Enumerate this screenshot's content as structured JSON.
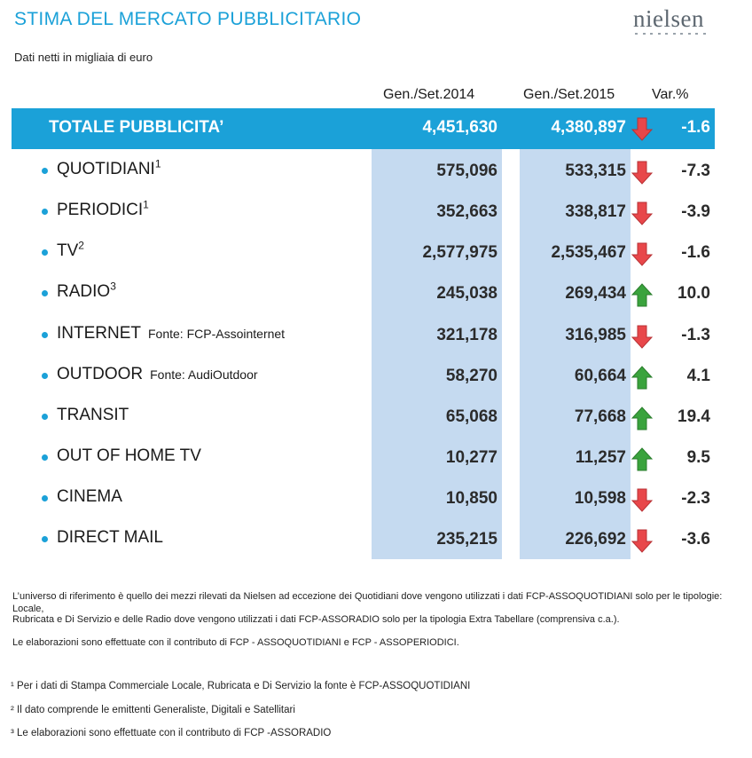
{
  "title": "STIMA DEL MERCATO PUBBLICITARIO",
  "subtitle": "Dati netti in migliaia di euro",
  "logo": "nielsen",
  "headers": {
    "col1": "Gen./Set.2014",
    "col2": "Gen./Set.2015",
    "var": "Var.%"
  },
  "total": {
    "label": "TOTALE PUBBLICITA’",
    "v2014": "4,451,630",
    "v2015": "4,380,897",
    "var": "-1.6",
    "direction": "down"
  },
  "rows": [
    {
      "label": "QUOTIDIANI",
      "sup": "1",
      "source": "",
      "v2014": "575,096",
      "v2015": "533,315",
      "var": "-7.3",
      "direction": "down"
    },
    {
      "label": "PERIODICI",
      "sup": "1",
      "source": "",
      "v2014": "352,663",
      "v2015": "338,817",
      "var": "-3.9",
      "direction": "down"
    },
    {
      "label": "TV",
      "sup": "2",
      "source": "",
      "v2014": "2,577,975",
      "v2015": "2,535,467",
      "var": "-1.6",
      "direction": "down"
    },
    {
      "label": "RADIO",
      "sup": "3",
      "source": "",
      "v2014": "245,038",
      "v2015": "269,434",
      "var": "10.0",
      "direction": "up"
    },
    {
      "label": "INTERNET",
      "sup": "",
      "source": "Fonte: FCP-Assointernet",
      "v2014": "321,178",
      "v2015": "316,985",
      "var": "-1.3",
      "direction": "down"
    },
    {
      "label": "OUTDOOR",
      "sup": "",
      "source": "Fonte: AudiOutdoor",
      "v2014": "58,270",
      "v2015": "60,664",
      "var": "4.1",
      "direction": "up"
    },
    {
      "label": "TRANSIT",
      "sup": "",
      "source": "",
      "v2014": "65,068",
      "v2015": "77,668",
      "var": "19.4",
      "direction": "up"
    },
    {
      "label": "OUT OF HOME TV",
      "sup": "",
      "source": "",
      "v2014": "10,277",
      "v2015": "11,257",
      "var": "9.5",
      "direction": "up"
    },
    {
      "label": "CINEMA",
      "sup": "",
      "source": "",
      "v2014": "10,850",
      "v2015": "10,598",
      "var": "-2.3",
      "direction": "down"
    },
    {
      "label": "DIRECT MAIL",
      "sup": "",
      "source": "",
      "v2014": "235,215",
      "v2015": "226,692",
      "var": "-3.6",
      "direction": "down"
    }
  ],
  "notes": [
    "L’universo di riferimento è quello dei mezzi rilevati da Nielsen ad eccezione dei Quotidiani dove vengono utilizzati i dati FCP-ASSOQUOTIDIANI solo per le tipologie: Locale,",
    "Rubricata e Di Servizio e delle Radio dove vengono utilizzati i dati FCP-ASSORADIO solo per la tipologia Extra Tabellare (comprensiva c.a.).",
    "Le elaborazioni sono effettuate con il contributo di FCP - ASSOQUOTIDIANI e FCP - ASSOPERIODICI."
  ],
  "footnotes": [
    "¹  Per i dati di Stampa Commerciale Locale, Rubricata e Di Servizio la fonte è  FCP-ASSOQUOTIDIANI",
    "²  Il dato comprende le emittenti Generaliste, Digitali e Satellitari",
    "³  Le elaborazioni sono effettuate con il contributo di FCP -ASSORADIO"
  ],
  "colors": {
    "accent": "#1ba1d8",
    "column_bg": "#c5daf0",
    "down": "#e8474a",
    "up": "#3aa33d"
  },
  "chart_data": {
    "type": "table",
    "title": "STIMA DEL MERCATO PUBBLICITARIO",
    "subtitle": "Dati netti in migliaia di euro",
    "columns": [
      "Gen./Set.2014",
      "Gen./Set.2015",
      "Var.%"
    ],
    "categories": [
      "TOTALE PUBBLICITA’",
      "QUOTIDIANI",
      "PERIODICI",
      "TV",
      "RADIO",
      "INTERNET",
      "OUTDOOR",
      "TRANSIT",
      "OUT OF HOME TV",
      "CINEMA",
      "DIRECT MAIL"
    ],
    "series": [
      {
        "name": "Gen./Set.2014",
        "values": [
          4451630,
          575096,
          352663,
          2577975,
          245038,
          321178,
          58270,
          65068,
          10277,
          10850,
          235215
        ]
      },
      {
        "name": "Gen./Set.2015",
        "values": [
          4380897,
          533315,
          338817,
          2535467,
          269434,
          316985,
          60664,
          77668,
          11257,
          10598,
          226692
        ]
      },
      {
        "name": "Var.%",
        "values": [
          -1.6,
          -7.3,
          -3.9,
          -1.6,
          10.0,
          -1.3,
          4.1,
          19.4,
          9.5,
          -2.3,
          -3.6
        ]
      }
    ]
  }
}
